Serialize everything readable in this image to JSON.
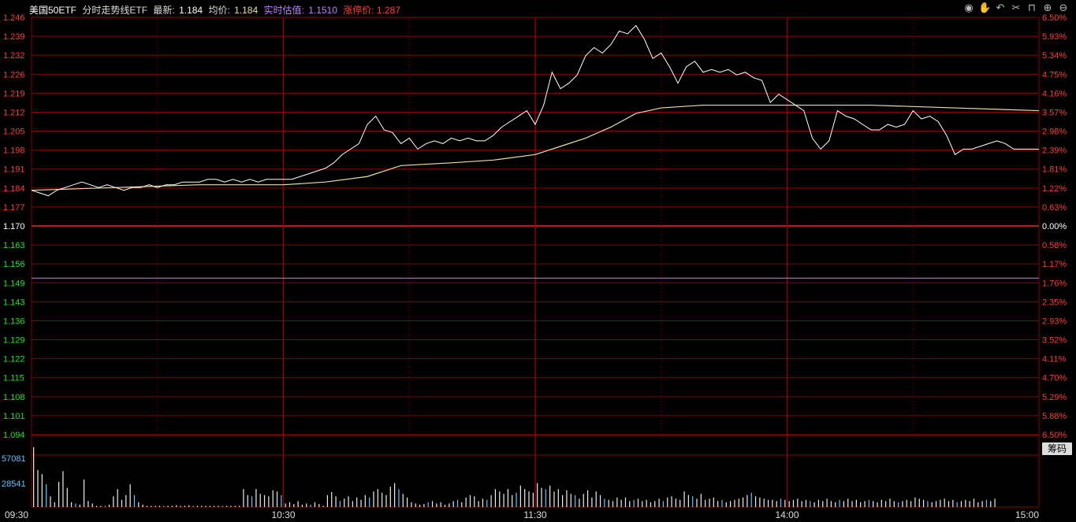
{
  "header": {
    "name": "美国50ETF",
    "chart_title": "分时走势线ETF",
    "latest_label": "最新:",
    "latest_value": "1.184",
    "avg_label": "均价:",
    "avg_value": "1.184",
    "iopv_label": "实时估值:",
    "iopv_value": "1.1510",
    "limit_label": "涨停价:",
    "limit_value": "1.287"
  },
  "toolbar": [
    {
      "name": "eye-icon",
      "glyph": "◉"
    },
    {
      "name": "hand-icon",
      "glyph": "✋"
    },
    {
      "name": "undo-icon",
      "glyph": "↶"
    },
    {
      "name": "scissors-icon",
      "glyph": "✂"
    },
    {
      "name": "lock-icon",
      "glyph": "⊓"
    },
    {
      "name": "zoom-in-icon",
      "glyph": "⊕"
    },
    {
      "name": "zoom-out-icon",
      "glyph": "⊖"
    }
  ],
  "side_button_label": "筹码",
  "colors": {
    "grid": "#8b0000",
    "price_line": "#ffffff",
    "avg_line": "#e8e0a0",
    "iopv_line": "#c080ff",
    "up_label": "#ff3b3b",
    "down_label": "#22e022",
    "neutral": "#ffffff",
    "volume_label": "#55c8ff"
  },
  "chart_data": {
    "type": "line",
    "prev_close": 1.17,
    "iopv": 1.151,
    "price_ticks": [
      "1.246",
      "1.239",
      "1.232",
      "1.226",
      "1.219",
      "1.212",
      "1.205",
      "1.198",
      "1.191",
      "1.184",
      "1.177",
      "1.170",
      "1.163",
      "1.156",
      "1.149",
      "1.143",
      "1.136",
      "1.129",
      "1.122",
      "1.115",
      "1.108",
      "1.101",
      "1.094"
    ],
    "pct_ticks": [
      "6.50%",
      "5.93%",
      "5.34%",
      "4.75%",
      "4.16%",
      "3.57%",
      "2.98%",
      "2.39%",
      "1.81%",
      "1.22%",
      "0.63%",
      "0.00%",
      "0.58%",
      "1.17%",
      "1.76%",
      "2.35%",
      "2.93%",
      "3.52%",
      "4.11%",
      "4.70%",
      "5.29%",
      "5.88%",
      "6.50%"
    ],
    "time_ticks": [
      "09:30",
      "10:30",
      "11:30",
      "14:00",
      "15:00"
    ],
    "volume_ticks": [
      "57081",
      "28541"
    ],
    "ylim": [
      1.094,
      1.246
    ],
    "minutes": 240,
    "price": [
      [
        0,
        1.183
      ],
      [
        2,
        1.182
      ],
      [
        4,
        1.181
      ],
      [
        6,
        1.183
      ],
      [
        8,
        1.184
      ],
      [
        10,
        1.185
      ],
      [
        12,
        1.186
      ],
      [
        14,
        1.185
      ],
      [
        16,
        1.184
      ],
      [
        18,
        1.185
      ],
      [
        20,
        1.184
      ],
      [
        22,
        1.183
      ],
      [
        24,
        1.184
      ],
      [
        26,
        1.184
      ],
      [
        28,
        1.185
      ],
      [
        30,
        1.184
      ],
      [
        32,
        1.185
      ],
      [
        34,
        1.185
      ],
      [
        36,
        1.186
      ],
      [
        38,
        1.186
      ],
      [
        40,
        1.186
      ],
      [
        42,
        1.187
      ],
      [
        44,
        1.187
      ],
      [
        46,
        1.186
      ],
      [
        48,
        1.187
      ],
      [
        50,
        1.186
      ],
      [
        52,
        1.187
      ],
      [
        54,
        1.186
      ],
      [
        56,
        1.187
      ],
      [
        58,
        1.187
      ],
      [
        60,
        1.187
      ],
      [
        62,
        1.187
      ],
      [
        64,
        1.188
      ],
      [
        66,
        1.189
      ],
      [
        68,
        1.19
      ],
      [
        70,
        1.191
      ],
      [
        72,
        1.193
      ],
      [
        74,
        1.196
      ],
      [
        76,
        1.198
      ],
      [
        78,
        1.2
      ],
      [
        80,
        1.207
      ],
      [
        82,
        1.21
      ],
      [
        84,
        1.205
      ],
      [
        86,
        1.204
      ],
      [
        88,
        1.2
      ],
      [
        90,
        1.202
      ],
      [
        92,
        1.198
      ],
      [
        94,
        1.2
      ],
      [
        96,
        1.201
      ],
      [
        98,
        1.2
      ],
      [
        100,
        1.202
      ],
      [
        102,
        1.201
      ],
      [
        104,
        1.202
      ],
      [
        106,
        1.201
      ],
      [
        108,
        1.201
      ],
      [
        110,
        1.203
      ],
      [
        112,
        1.206
      ],
      [
        114,
        1.208
      ],
      [
        116,
        1.21
      ],
      [
        118,
        1.212
      ],
      [
        120,
        1.207
      ],
      [
        122,
        1.214
      ],
      [
        124,
        1.226
      ],
      [
        126,
        1.22
      ],
      [
        128,
        1.222
      ],
      [
        130,
        1.225
      ],
      [
        132,
        1.232
      ],
      [
        134,
        1.235
      ],
      [
        136,
        1.233
      ],
      [
        138,
        1.236
      ],
      [
        140,
        1.241
      ],
      [
        142,
        1.24
      ],
      [
        144,
        1.243
      ],
      [
        146,
        1.238
      ],
      [
        148,
        1.231
      ],
      [
        150,
        1.233
      ],
      [
        152,
        1.228
      ],
      [
        154,
        1.222
      ],
      [
        156,
        1.228
      ],
      [
        158,
        1.23
      ],
      [
        160,
        1.226
      ],
      [
        162,
        1.227
      ],
      [
        164,
        1.226
      ],
      [
        166,
        1.227
      ],
      [
        168,
        1.225
      ],
      [
        170,
        1.226
      ],
      [
        172,
        1.224
      ],
      [
        174,
        1.223
      ],
      [
        176,
        1.215
      ],
      [
        178,
        1.218
      ],
      [
        180,
        1.216
      ],
      [
        182,
        1.214
      ],
      [
        184,
        1.212
      ],
      [
        186,
        1.202
      ],
      [
        188,
        1.198
      ],
      [
        190,
        1.201
      ],
      [
        192,
        1.212
      ],
      [
        194,
        1.21
      ],
      [
        196,
        1.209
      ],
      [
        198,
        1.207
      ],
      [
        200,
        1.205
      ],
      [
        202,
        1.205
      ],
      [
        204,
        1.207
      ],
      [
        206,
        1.206
      ],
      [
        208,
        1.207
      ],
      [
        210,
        1.212
      ],
      [
        212,
        1.209
      ],
      [
        214,
        1.21
      ],
      [
        216,
        1.208
      ],
      [
        218,
        1.203
      ],
      [
        220,
        1.196
      ],
      [
        222,
        1.198
      ],
      [
        224,
        1.198
      ],
      [
        226,
        1.199
      ],
      [
        228,
        1.2
      ],
      [
        230,
        1.201
      ],
      [
        232,
        1.2
      ],
      [
        234,
        1.198
      ],
      [
        236,
        1.198
      ],
      [
        238,
        1.198
      ],
      [
        240,
        1.198
      ]
    ],
    "avg_price": [
      [
        0,
        1.183
      ],
      [
        20,
        1.184
      ],
      [
        40,
        1.185
      ],
      [
        60,
        1.185
      ],
      [
        70,
        1.186
      ],
      [
        80,
        1.188
      ],
      [
        88,
        1.192
      ],
      [
        100,
        1.193
      ],
      [
        110,
        1.194
      ],
      [
        120,
        1.196
      ],
      [
        126,
        1.199
      ],
      [
        132,
        1.202
      ],
      [
        138,
        1.206
      ],
      [
        144,
        1.211
      ],
      [
        150,
        1.213
      ],
      [
        160,
        1.214
      ],
      [
        180,
        1.214
      ],
      [
        200,
        1.214
      ],
      [
        220,
        1.213
      ],
      [
        240,
        1.212
      ]
    ],
    "volume": [
      1,
      0.62,
      0.55,
      0.38,
      0.18,
      0.08,
      0.42,
      0.6,
      0.32,
      0.08,
      0.06,
      0.04,
      0.46,
      0.1,
      0.06,
      0.02,
      0.02,
      0.02,
      0.04,
      0.18,
      0.3,
      0.12,
      0.2,
      0.38,
      0.2,
      0.08,
      0.04,
      0.02,
      0.02,
      0.02,
      0.02,
      0.02,
      0.02,
      0.02,
      0.03,
      0.02,
      0.02,
      0.03,
      0.02,
      0.02,
      0.02,
      0.02,
      0.02,
      0.02,
      0.02,
      0.02,
      0.02,
      0.02,
      0.02,
      0.02,
      0.3,
      0.2,
      0.18,
      0.3,
      0.22,
      0.2,
      0.18,
      0.28,
      0.26,
      0.2,
      0.06,
      0.08,
      0.05,
      0.1,
      0.04,
      0.06,
      0.04,
      0.08,
      0.05,
      0.02,
      0.2,
      0.25,
      0.18,
      0.1,
      0.14,
      0.18,
      0.1,
      0.16,
      0.12,
      0.2,
      0.16,
      0.26,
      0.3,
      0.24,
      0.2,
      0.34,
      0.4,
      0.3,
      0.22,
      0.16,
      0.08,
      0.06,
      0.04,
      0.05,
      0.08,
      0.1,
      0.06,
      0.08,
      0.04,
      0.06,
      0.1,
      0.12,
      0.08,
      0.16,
      0.2,
      0.18,
      0.1,
      0.14,
      0.12,
      0.2,
      0.3,
      0.26,
      0.22,
      0.3,
      0.2,
      0.24,
      0.36,
      0.3,
      0.26,
      0.24,
      0.4,
      0.32,
      0.3,
      0.36,
      0.26,
      0.3,
      0.2,
      0.28,
      0.22,
      0.2,
      0.14,
      0.22,
      0.28,
      0.16,
      0.26,
      0.2,
      0.14,
      0.12,
      0.1,
      0.16,
      0.12,
      0.16,
      0.1,
      0.12,
      0.14,
      0.1,
      0.12,
      0.08,
      0.1,
      0.14,
      0.1,
      0.16,
      0.18,
      0.14,
      0.12,
      0.26,
      0.2,
      0.18,
      0.14,
      0.22,
      0.12,
      0.14,
      0.16,
      0.1,
      0.12,
      0.08,
      0.1,
      0.12,
      0.14,
      0.16,
      0.2,
      0.24,
      0.18,
      0.16,
      0.14,
      0.12,
      0.12,
      0.1,
      0.14,
      0.12,
      0.1,
      0.12,
      0.14,
      0.1,
      0.12,
      0.1,
      0.08,
      0.12,
      0.1,
      0.14,
      0.1,
      0.08,
      0.12,
      0.1,
      0.14,
      0.1,
      0.12,
      0.08,
      0.1,
      0.12,
      0.1,
      0.08,
      0.12,
      0.1,
      0.14,
      0.1,
      0.08,
      0.1,
      0.12,
      0.1,
      0.16,
      0.14,
      0.12,
      0.1,
      0.08,
      0.1,
      0.12,
      0.14,
      0.1,
      0.12,
      0.08,
      0.1,
      0.12,
      0.1,
      0.14,
      0.08,
      0.1,
      0.12,
      0.1,
      0.14
    ]
  }
}
